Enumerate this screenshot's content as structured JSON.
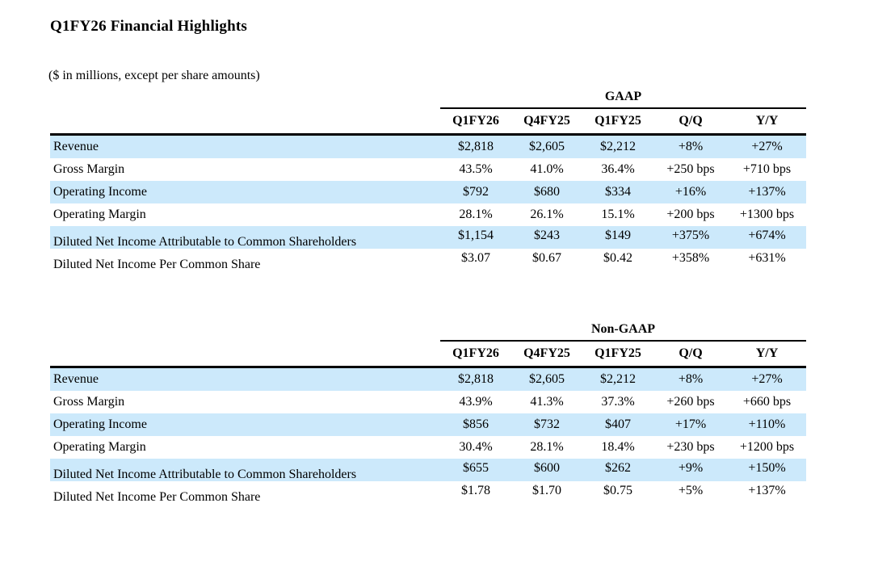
{
  "page": {
    "title": "Q1FY26 Financial Highlights",
    "subtitle": "($ in millions, except per share amounts)"
  },
  "colors": {
    "row_stripe": "#cce9fb",
    "text": "#000000",
    "background": "#ffffff",
    "rule_lines": "#000000"
  },
  "tables": [
    {
      "group": "GAAP",
      "columns": [
        "Q1FY26",
        "Q4FY25",
        "Q1FY25",
        "Q/Q",
        "Y/Y"
      ],
      "rows": [
        {
          "label": "Revenue",
          "values": [
            "$2,818",
            "$2,605",
            "$2,212",
            "+8%",
            "+27%"
          ]
        },
        {
          "label": "Gross Margin",
          "values": [
            "43.5%",
            "41.0%",
            "36.4%",
            "+250 bps",
            "+710 bps"
          ]
        },
        {
          "label": "Operating Income",
          "values": [
            "$792",
            "$680",
            "$334",
            "+16%",
            "+137%"
          ]
        },
        {
          "label": "Operating Margin",
          "values": [
            "28.1%",
            "26.1%",
            "15.1%",
            "+200 bps",
            "+1300 bps"
          ]
        },
        {
          "label": "Diluted Net Income Attributable to Common Shareholders",
          "values": [
            "$1,154",
            "$243",
            "$149",
            "+375%",
            "+674%"
          ]
        },
        {
          "label": "Diluted Net Income Per Common Share",
          "values": [
            "$3.07",
            "$0.67",
            "$0.42",
            "+358%",
            "+631%"
          ]
        }
      ]
    },
    {
      "group": "Non-GAAP",
      "columns": [
        "Q1FY26",
        "Q4FY25",
        "Q1FY25",
        "Q/Q",
        "Y/Y"
      ],
      "rows": [
        {
          "label": "Revenue",
          "values": [
            "$2,818",
            "$2,605",
            "$2,212",
            "+8%",
            "+27%"
          ]
        },
        {
          "label": "Gross Margin",
          "values": [
            "43.9%",
            "41.3%",
            "37.3%",
            "+260 bps",
            "+660 bps"
          ]
        },
        {
          "label": "Operating Income",
          "values": [
            "$856",
            "$732",
            "$407",
            "+17%",
            "+110%"
          ]
        },
        {
          "label": "Operating Margin",
          "values": [
            "30.4%",
            "28.1%",
            "18.4%",
            "+230 bps",
            "+1200 bps"
          ]
        },
        {
          "label": "Diluted Net Income Attributable to Common Shareholders",
          "values": [
            "$655",
            "$600",
            "$262",
            "+9%",
            "+150%"
          ]
        },
        {
          "label": "Diluted Net Income Per Common Share",
          "values": [
            "$1.78",
            "$1.70",
            "$0.75",
            "+5%",
            "+137%"
          ]
        }
      ]
    }
  ]
}
